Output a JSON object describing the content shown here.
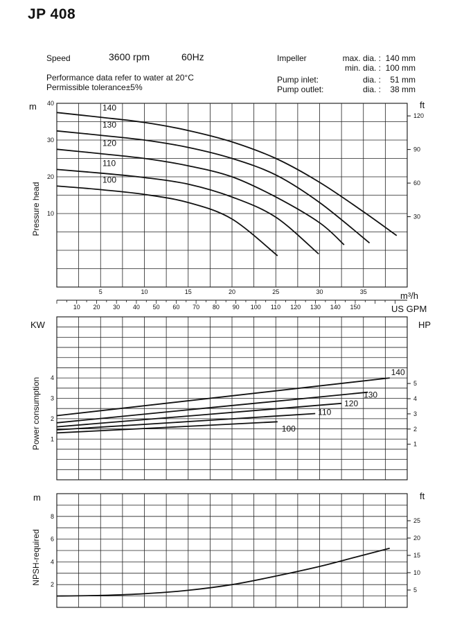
{
  "title": "JP 408",
  "header": {
    "speed_label": "Speed",
    "speed_value": "3600 rpm",
    "frequency": "60Hz",
    "performance_note": "Performance data refer to water at 20°C",
    "tolerance_note": "Permissible tolerance±5%",
    "impeller_label": "Impeller",
    "max_dia_label": "max. dia. :",
    "max_dia_value": "140 mm",
    "min_dia_label": "min. dia. :",
    "min_dia_value": "100 mm",
    "inlet_label": "Pump inlet:",
    "inlet_dia_label": "dia. :",
    "inlet_value": "51 mm",
    "outlet_label": "Pump outlet:",
    "outlet_dia_label": "dia. :",
    "outlet_value": "38 mm"
  },
  "chart_data": [
    {
      "type": "line",
      "id": "head",
      "ylabel": "Pressure head",
      "left_unit": "m",
      "right_unit": "ft",
      "xlabel": "m³/h",
      "xlabel_secondary": "US GPM",
      "xlim": [
        0,
        40
      ],
      "ylim": [
        -10,
        40
      ],
      "x_ticks": [
        5,
        10,
        15,
        20,
        25,
        30,
        35
      ],
      "y_ticks": [
        10,
        20,
        30,
        40
      ],
      "right_ticks": [
        30,
        60,
        90,
        120
      ],
      "gpm_ticks": [
        10,
        20,
        30,
        40,
        50,
        60,
        70,
        80,
        90,
        100,
        110,
        120,
        130,
        140,
        150
      ],
      "grid": true,
      "series": [
        {
          "name": "140",
          "x": [
            0,
            5,
            10,
            15,
            20,
            25,
            30,
            35,
            38.8
          ],
          "y": [
            37.5,
            36.2,
            34.8,
            32.6,
            29.5,
            25.0,
            18.5,
            10.5,
            4.0
          ]
        },
        {
          "name": "130",
          "x": [
            0,
            5,
            10,
            15,
            20,
            25,
            30,
            35.7
          ],
          "y": [
            32.5,
            31.3,
            30.0,
            28.0,
            25.0,
            20.5,
            13.0,
            2.0
          ]
        },
        {
          "name": "120",
          "x": [
            0,
            5,
            10,
            15,
            20,
            25,
            30,
            32.8
          ],
          "y": [
            27.5,
            26.3,
            25.0,
            23.0,
            20.0,
            14.5,
            7.5,
            1.5
          ]
        },
        {
          "name": "110",
          "x": [
            0,
            5,
            10,
            15,
            20,
            25,
            29.9
          ],
          "y": [
            22.0,
            21.0,
            19.8,
            18.0,
            14.5,
            9.0,
            -1.0
          ]
        },
        {
          "name": "100",
          "x": [
            0,
            5,
            10,
            15,
            20,
            25.2
          ],
          "y": [
            17.5,
            16.5,
            15.2,
            13.0,
            8.5,
            -1.5
          ]
        }
      ]
    },
    {
      "type": "line",
      "id": "power",
      "ylabel": "Power consumption",
      "left_unit": "KW",
      "right_unit": "HP",
      "xlim": [
        0,
        40
      ],
      "ylim": [
        -1,
        7
      ],
      "y_ticks": [
        1,
        2,
        3,
        4
      ],
      "right_ticks": [
        1,
        2,
        3,
        4,
        5
      ],
      "grid": true,
      "series": [
        {
          "name": "140",
          "x": [
            0,
            38
          ],
          "y": [
            2.15,
            4.0
          ]
        },
        {
          "name": "130",
          "x": [
            0,
            35.5
          ],
          "y": [
            1.8,
            3.3
          ]
        },
        {
          "name": "120",
          "x": [
            0,
            32.5
          ],
          "y": [
            1.6,
            2.75
          ]
        },
        {
          "name": "110",
          "x": [
            0,
            29.5
          ],
          "y": [
            1.45,
            2.25
          ]
        },
        {
          "name": "100",
          "x": [
            0,
            25.2
          ],
          "y": [
            1.3,
            1.85
          ]
        }
      ]
    },
    {
      "type": "line",
      "id": "npsh",
      "ylabel": "NPSH-required",
      "left_unit": "m",
      "right_unit": "ft",
      "xlim": [
        0,
        40
      ],
      "ylim": [
        0,
        10
      ],
      "y_ticks": [
        2,
        4,
        6,
        8
      ],
      "right_ticks": [
        5,
        10,
        15,
        20,
        25
      ],
      "grid": true,
      "series": [
        {
          "name": "",
          "x": [
            0,
            5,
            10,
            15,
            20,
            25,
            30,
            35,
            38
          ],
          "y": [
            1.0,
            1.05,
            1.2,
            1.5,
            2.0,
            2.75,
            3.6,
            4.6,
            5.2
          ]
        }
      ]
    }
  ]
}
